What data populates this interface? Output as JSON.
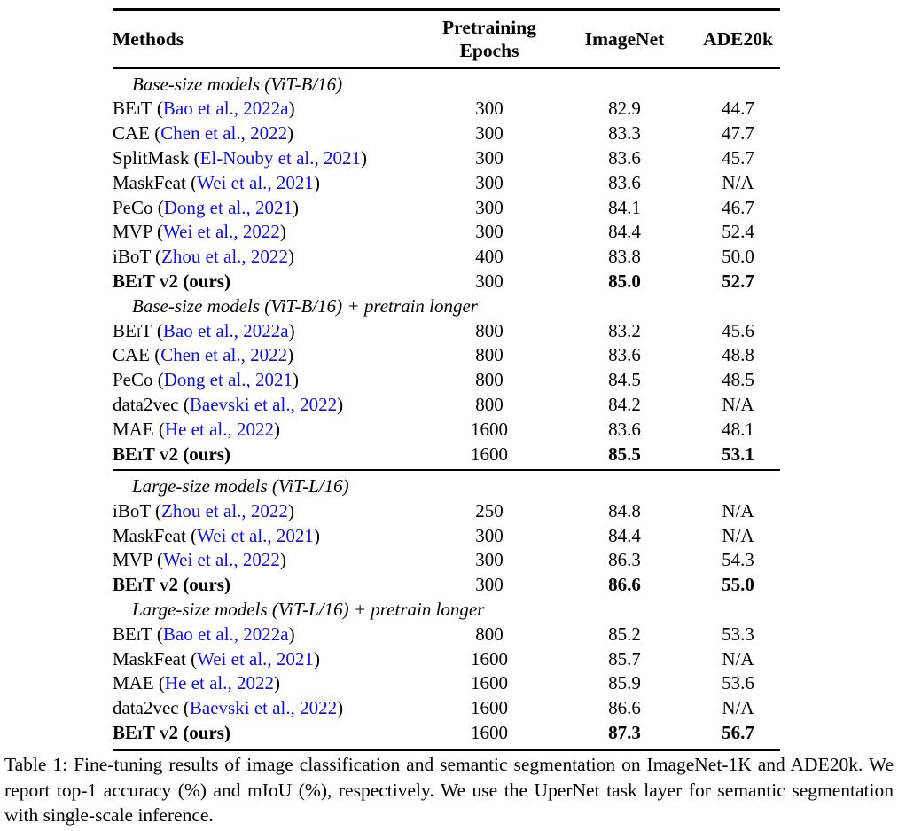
{
  "colors": {
    "citation_blue": "#0E0EE8",
    "text": "#000000",
    "background": "#FFFFFF"
  },
  "table": {
    "columns": {
      "methods": "Methods",
      "epochs_line1": "Pretraining",
      "epochs_line2": "Epochs",
      "imagenet": "ImageNet",
      "ade20k": "ADE20k"
    },
    "groups": [
      {
        "rows": [
          {
            "type": "section",
            "label": "Base-size models (ViT-B/16)"
          },
          {
            "type": "data",
            "method": "BEiT",
            "smallcaps": true,
            "cite": "Bao et al., 2022a",
            "epochs": "300",
            "imagenet": "82.9",
            "ade20k": "44.7"
          },
          {
            "type": "data",
            "method": "CAE",
            "cite": "Chen et al., 2022",
            "epochs": "300",
            "imagenet": "83.3",
            "ade20k": "47.7"
          },
          {
            "type": "data",
            "method": "SplitMask",
            "cite": "El-Nouby et al., 2021",
            "epochs": "300",
            "imagenet": "83.6",
            "ade20k": "45.7"
          },
          {
            "type": "data",
            "method": "MaskFeat",
            "cite": "Wei et al., 2021",
            "epochs": "300",
            "imagenet": "83.6",
            "ade20k": "N/A"
          },
          {
            "type": "data",
            "method": "PeCo",
            "cite": "Dong et al., 2021",
            "epochs": "300",
            "imagenet": "84.1",
            "ade20k": "46.7"
          },
          {
            "type": "data",
            "method": "MVP",
            "cite": "Wei et al., 2022",
            "epochs": "300",
            "imagenet": "84.4",
            "ade20k": "52.4"
          },
          {
            "type": "data",
            "method": "iBoT",
            "cite": "Zhou et al., 2022",
            "epochs": "400",
            "imagenet": "83.8",
            "ade20k": "50.0"
          },
          {
            "type": "data",
            "method": "BEiT v2",
            "smallcaps": true,
            "suffix": " (ours)",
            "bold": true,
            "epochs": "300",
            "imagenet": "85.0",
            "ade20k": "52.7"
          },
          {
            "type": "section",
            "label": "Base-size models (ViT-B/16) + pretrain longer"
          },
          {
            "type": "data",
            "method": "BEiT",
            "smallcaps": true,
            "cite": "Bao et al., 2022a",
            "epochs": "800",
            "imagenet": "83.2",
            "ade20k": "45.6"
          },
          {
            "type": "data",
            "method": "CAE",
            "cite": "Chen et al., 2022",
            "epochs": "800",
            "imagenet": "83.6",
            "ade20k": "48.8"
          },
          {
            "type": "data",
            "method": "PeCo",
            "cite": "Dong et al., 2021",
            "epochs": "800",
            "imagenet": "84.5",
            "ade20k": "48.5"
          },
          {
            "type": "data",
            "method": "data2vec",
            "cite": "Baevski et al., 2022",
            "epochs": "800",
            "imagenet": "84.2",
            "ade20k": "N/A"
          },
          {
            "type": "data",
            "method": "MAE",
            "cite": "He et al., 2022",
            "epochs": "1600",
            "imagenet": "83.6",
            "ade20k": "48.1"
          },
          {
            "type": "data",
            "method": "BEiT v2",
            "smallcaps": true,
            "suffix": " (ours)",
            "bold": true,
            "epochs": "1600",
            "imagenet": "85.5",
            "ade20k": "53.1"
          }
        ]
      },
      {
        "rows": [
          {
            "type": "section",
            "label": "Large-size models (ViT-L/16)"
          },
          {
            "type": "data",
            "method": "iBoT",
            "cite": "Zhou et al., 2022",
            "epochs": "250",
            "imagenet": "84.8",
            "ade20k": "N/A"
          },
          {
            "type": "data",
            "method": "MaskFeat",
            "cite": "Wei et al., 2021",
            "epochs": "300",
            "imagenet": "84.4",
            "ade20k": "N/A"
          },
          {
            "type": "data",
            "method": "MVP",
            "cite": "Wei et al., 2022",
            "epochs": "300",
            "imagenet": "86.3",
            "ade20k": "54.3"
          },
          {
            "type": "data",
            "method": "BEiT v2",
            "smallcaps": true,
            "suffix": " (ours)",
            "bold": true,
            "epochs": "300",
            "imagenet": "86.6",
            "ade20k": "55.0"
          },
          {
            "type": "section",
            "label": "Large-size models (ViT-L/16) + pretrain longer"
          },
          {
            "type": "data",
            "method": "BEiT",
            "smallcaps": true,
            "cite": "Bao et al., 2022a",
            "epochs": "800",
            "imagenet": "85.2",
            "ade20k": "53.3"
          },
          {
            "type": "data",
            "method": "MaskFeat",
            "cite": "Wei et al., 2021",
            "epochs": "1600",
            "imagenet": "85.7",
            "ade20k": "N/A"
          },
          {
            "type": "data",
            "method": "MAE",
            "cite": "He et al., 2022",
            "epochs": "1600",
            "imagenet": "85.9",
            "ade20k": "53.6"
          },
          {
            "type": "data",
            "method": "data2vec",
            "cite": "Baevski et al., 2022",
            "epochs": "1600",
            "imagenet": "86.6",
            "ade20k": "N/A"
          },
          {
            "type": "data",
            "method": "BEiT v2",
            "smallcaps": true,
            "suffix": " (ours)",
            "bold": true,
            "epochs": "1600",
            "imagenet": "87.3",
            "ade20k": "56.7"
          }
        ]
      }
    ]
  },
  "caption": "Table 1: Fine-tuning results of image classification and semantic segmentation on ImageNet-1K and ADE20k. We report top-1 accuracy (%) and mIoU (%), respectively. We use the UperNet task layer for semantic segmentation with single-scale inference."
}
